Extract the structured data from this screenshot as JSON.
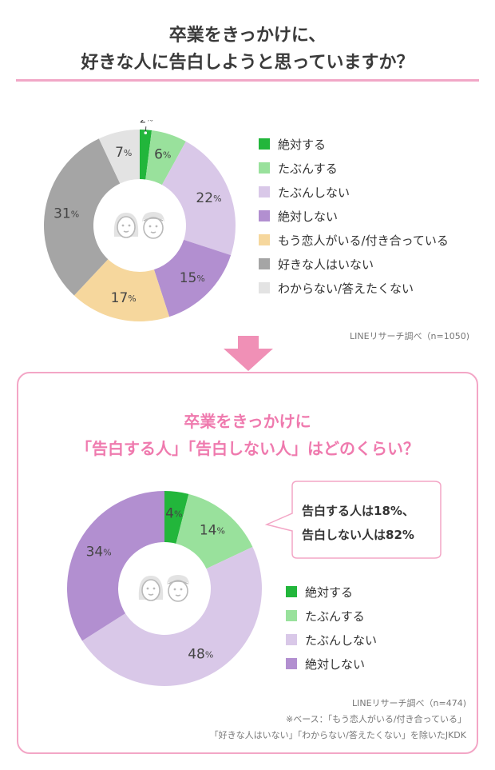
{
  "header": {
    "title_line1": "卒業をきっかけに、",
    "title_line2": "好きな人に告白しようと思っていますか？"
  },
  "chart_data": [
    {
      "type": "pie",
      "variant": "donut",
      "title": "卒業をきっかけに、好きな人に告白しようと思っていますか？",
      "categories": [
        "絶対する",
        "たぶんする",
        "たぶんしない",
        "絶対しない",
        "もう恋人がいる/付き合っている",
        "好きな人はいない",
        "わからない/答えたくない"
      ],
      "values": [
        2,
        6,
        22,
        15,
        17,
        31,
        7
      ],
      "colors": [
        "#22b63b",
        "#99e19c",
        "#d9c8e8",
        "#b28fd0",
        "#f6d79d",
        "#a5a5a5",
        "#e3e3e3"
      ],
      "unit": "%",
      "legend_position": "right",
      "source": "LINEリサーチ調べ（n=1050)"
    },
    {
      "type": "pie",
      "variant": "donut",
      "title_line1": "卒業をきっかけに",
      "title_line2": "「告白する人」「告白しない人」はどのくらい？",
      "categories": [
        "絶対する",
        "たぶんする",
        "たぶんしない",
        "絶対しない"
      ],
      "values": [
        4,
        14,
        48,
        34
      ],
      "colors": [
        "#22b63b",
        "#99e19c",
        "#d9c8e8",
        "#b28fd0"
      ],
      "unit": "%",
      "legend_position": "right",
      "callout_line1": "告白する人は18%、",
      "callout_line2": "告白しない人は82%",
      "source": "LINEリサーチ調べ（n=474)",
      "note_line1": "※ベース：「もう恋人がいる/付き合っている」",
      "note_line2": "「好きな人はいない」「わからない/答えたくない」を除いたJKDK"
    }
  ]
}
